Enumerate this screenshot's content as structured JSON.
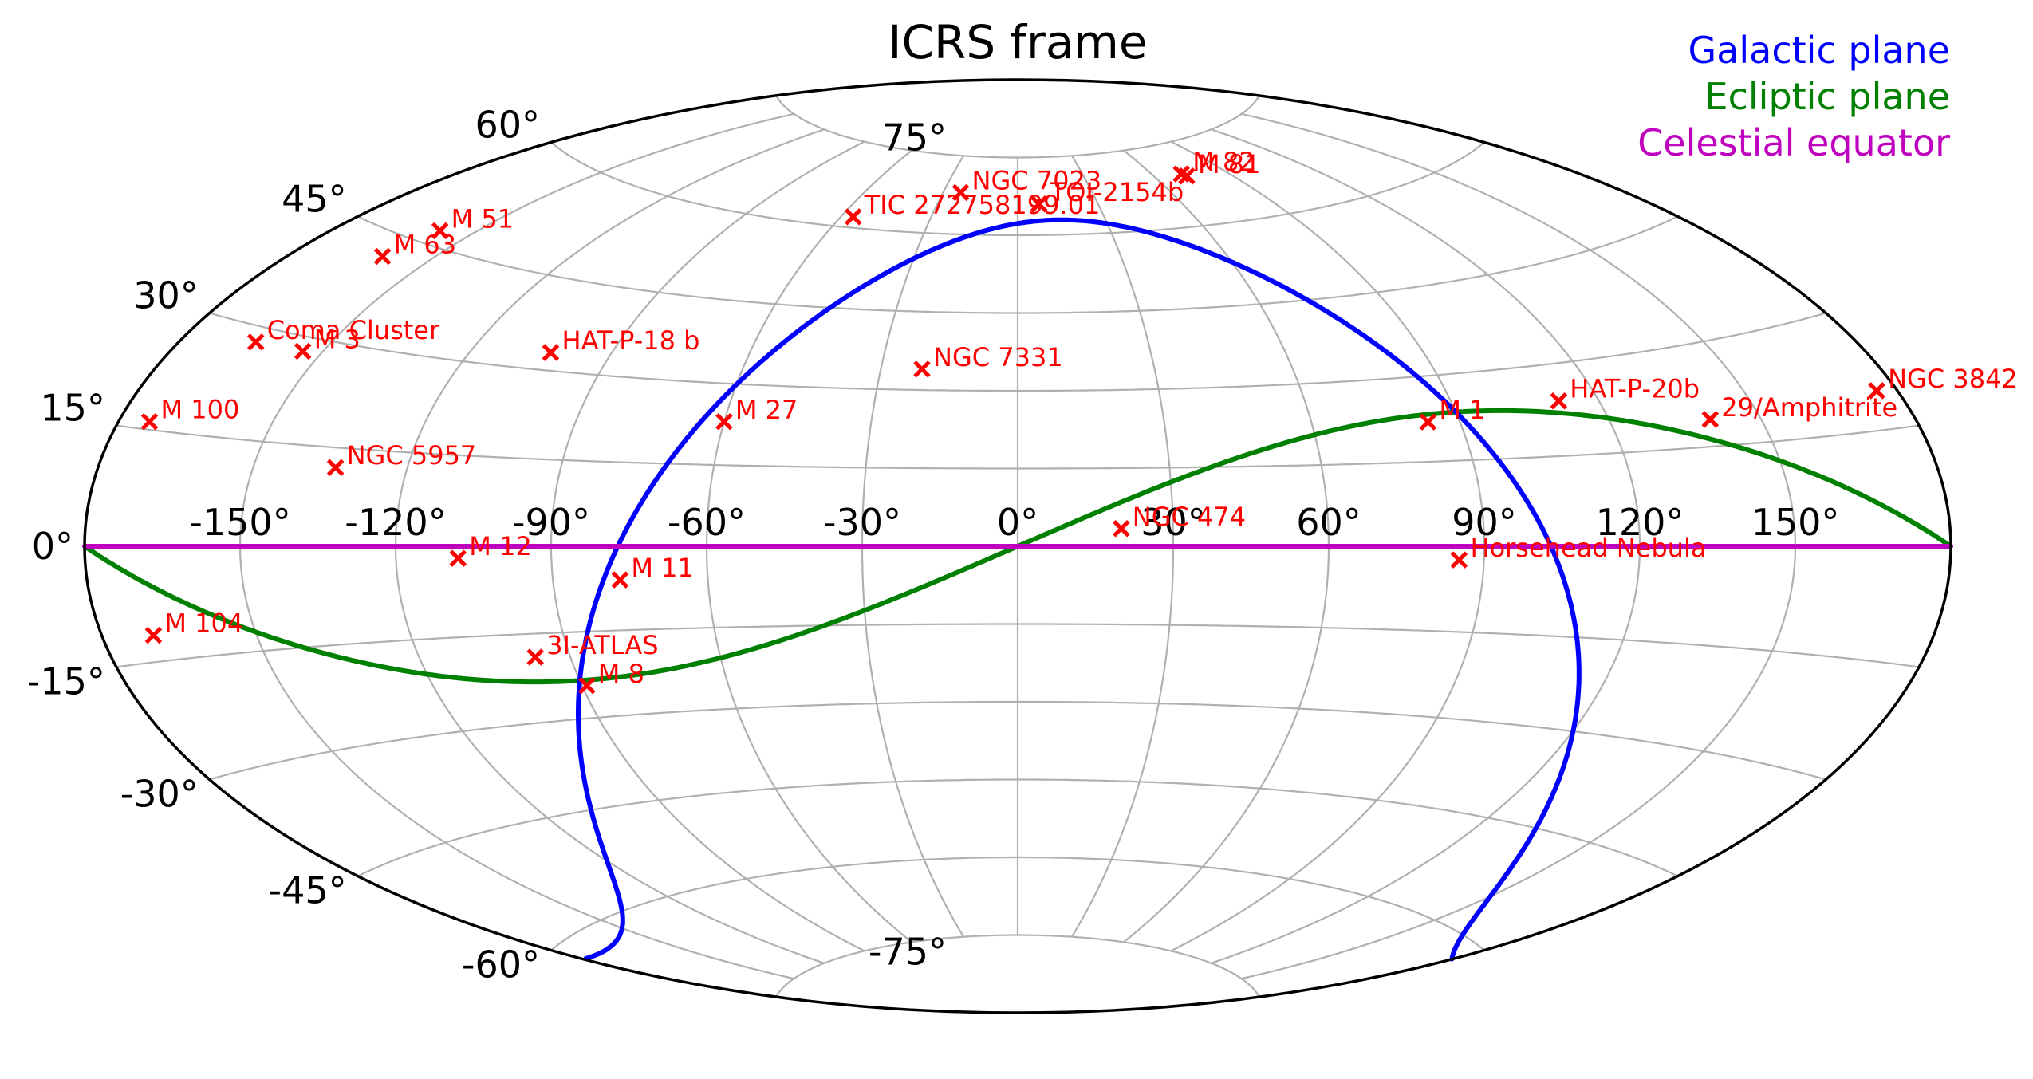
{
  "chart_data": {
    "type": "scatter",
    "projection": "aitoff",
    "title": "ICRS frame",
    "lon_ticks": [
      "-150°",
      "-120°",
      "-90°",
      "-60°",
      "-30°",
      "0°",
      "30°",
      "60°",
      "90°",
      "120°",
      "150°"
    ],
    "lon_tick_values": [
      -150,
      -120,
      -90,
      -60,
      -30,
      0,
      30,
      60,
      90,
      120,
      150
    ],
    "lat_ticks": [
      "75°",
      "60°",
      "45°",
      "30°",
      "15°",
      "0°",
      "-15°",
      "-30°",
      "-45°",
      "-60°",
      "-75°"
    ],
    "lat_tick_values": [
      75,
      60,
      45,
      30,
      15,
      0,
      -15,
      -30,
      -45,
      -60,
      -75
    ],
    "grid": true,
    "legend_position": "top-right",
    "reference_lines": [
      {
        "name": "Galactic plane",
        "color": "#0000ff"
      },
      {
        "name": "Ecliptic plane",
        "color": "#008000"
      },
      {
        "name": "Celestial equator",
        "color": "#bf00bf"
      }
    ],
    "marker": {
      "symbol": "x",
      "color": "#ff0000"
    },
    "points": [
      {
        "label": "TOI-2154b",
        "lon": 8,
        "lat": 66
      },
      {
        "label": "M 82",
        "lon": 72,
        "lat": 69.5
      },
      {
        "label": "M 81",
        "lon": 73,
        "lat": 69
      },
      {
        "label": "TIC 272758199.01",
        "lon": -56,
        "lat": 62
      },
      {
        "label": "NGC 7023",
        "lon": -23,
        "lat": 68
      },
      {
        "label": "M 51",
        "lon": -158,
        "lat": 47
      },
      {
        "label": "M 63",
        "lon": -161,
        "lat": 42
      },
      {
        "label": "Coma Cluster",
        "lon": -165,
        "lat": 28
      },
      {
        "label": "M 3",
        "lon": -154,
        "lat": 28
      },
      {
        "label": "HAT-P-18 b",
        "lon": -103,
        "lat": 33
      },
      {
        "label": "NGC 7331",
        "lon": -21,
        "lat": 34
      },
      {
        "label": "M 27",
        "lon": -60,
        "lat": 23
      },
      {
        "label": "M 100",
        "lon": -174,
        "lat": 16
      },
      {
        "label": "NGC 5957",
        "lon": -134,
        "lat": 12
      },
      {
        "label": "M 1",
        "lon": 83.6,
        "lat": 22
      },
      {
        "label": "HAT-P-20b",
        "lon": 111.9,
        "lat": 24
      },
      {
        "label": "29/Amphitrite",
        "lon": 140,
        "lat": 19
      },
      {
        "label": "NGC 3842",
        "lon": 176,
        "lat": 19.9
      },
      {
        "label": "NGC 474",
        "lon": 20,
        "lat": 3.4
      },
      {
        "label": "M 12",
        "lon": -108,
        "lat": -2
      },
      {
        "label": "M 11",
        "lon": -77,
        "lat": -6
      },
      {
        "label": "Horsehead Nebula",
        "lon": 85.2,
        "lat": -2.4
      },
      {
        "label": "M 104",
        "lon": -170,
        "lat": -11.6
      },
      {
        "label": "3I-ATLAS",
        "lon": -97,
        "lat": -19
      },
      {
        "label": "M 8",
        "lon": -89,
        "lat": -24.4
      }
    ]
  }
}
